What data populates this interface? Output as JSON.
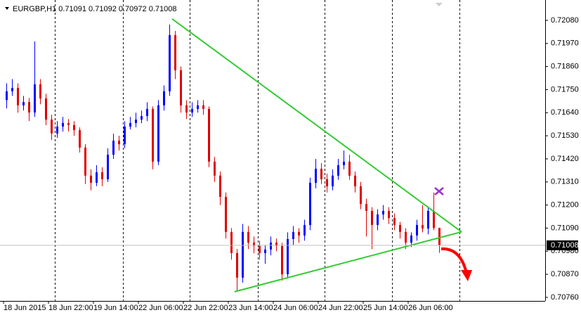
{
  "chart_data": {
    "type": "candlestick",
    "symbol": "EURGBP,H1",
    "up_color": "#0000ff",
    "down_color": "#e00000",
    "categories": [
      "18 Jun 2015",
      null,
      null,
      null,
      null,
      null,
      null,
      null,
      "18 Jun 22:00",
      null,
      null,
      null,
      null,
      null,
      null,
      null,
      "19 Jun 14:00",
      null,
      null,
      null,
      null,
      null,
      null,
      null,
      "22 Jun 06:00",
      null,
      null,
      null,
      null,
      null,
      null,
      null,
      "22 Jun 22:00",
      null,
      null,
      null,
      null,
      null,
      null,
      null,
      "23 Jun 14:00",
      null,
      null,
      null,
      null,
      null,
      null,
      null,
      "24 Jun 06:00",
      null,
      null,
      null,
      null,
      null,
      null,
      null,
      "24 Jun 22:00",
      null,
      null,
      null,
      null,
      null,
      null,
      null,
      "25 Jun 14:00",
      null,
      null,
      null,
      null,
      null,
      null,
      null,
      "26 Jun 06:00",
      null,
      null,
      null,
      null,
      null
    ],
    "ohlc": [
      [
        0.717,
        0.7178,
        0.7166,
        0.71742
      ],
      [
        0.71742,
        0.718,
        0.7172,
        0.71758
      ],
      [
        0.71758,
        0.7178,
        0.7164,
        0.71675
      ],
      [
        0.71675,
        0.7172,
        0.7165,
        0.71691
      ],
      [
        0.71691,
        0.7171,
        0.716,
        0.71641
      ],
      [
        0.71641,
        0.7198,
        0.7162,
        0.71775
      ],
      [
        0.71775,
        0.718,
        0.7168,
        0.71708
      ],
      [
        0.71708,
        0.7173,
        0.7158,
        0.71607
      ],
      [
        0.71607,
        0.7163,
        0.7151,
        0.71541
      ],
      [
        0.71541,
        0.716,
        0.7152,
        0.71574
      ],
      [
        0.71574,
        0.7162,
        0.7155,
        0.71591
      ],
      [
        0.71591,
        0.7161,
        0.7155,
        0.71581
      ],
      [
        0.71581,
        0.716,
        0.7153,
        0.71557
      ],
      [
        0.71557,
        0.7157,
        0.7145,
        0.71474
      ],
      [
        0.71474,
        0.7149,
        0.713,
        0.7134
      ],
      [
        0.7134,
        0.7137,
        0.7127,
        0.71306
      ],
      [
        0.71306,
        0.7139,
        0.7129,
        0.71356
      ],
      [
        0.71356,
        0.7138,
        0.7129,
        0.71323
      ],
      [
        0.71323,
        0.7147,
        0.7131,
        0.7144
      ],
      [
        0.7144,
        0.7154,
        0.7142,
        0.71507
      ],
      [
        0.71507,
        0.7153,
        0.7146,
        0.7149
      ],
      [
        0.7149,
        0.716,
        0.7147,
        0.71574
      ],
      [
        0.71574,
        0.7162,
        0.7156,
        0.71591
      ],
      [
        0.71591,
        0.7164,
        0.7157,
        0.71607
      ],
      [
        0.71607,
        0.7165,
        0.7159,
        0.71624
      ],
      [
        0.71624,
        0.7169,
        0.716,
        0.71658
      ],
      [
        0.71658,
        0.7167,
        0.7137,
        0.71407
      ],
      [
        0.71407,
        0.717,
        0.7139,
        0.71675
      ],
      [
        0.71675,
        0.7177,
        0.7165,
        0.71742
      ],
      [
        0.71742,
        0.7206,
        0.7172,
        0.7201
      ],
      [
        0.7201,
        0.7203,
        0.718,
        0.71842
      ],
      [
        0.71842,
        0.7186,
        0.7164,
        0.71675
      ],
      [
        0.71675,
        0.717,
        0.7161,
        0.71641
      ],
      [
        0.71641,
        0.7169,
        0.7162,
        0.71658
      ],
      [
        0.71658,
        0.717,
        0.7164,
        0.71675
      ],
      [
        0.71675,
        0.717,
        0.7163,
        0.71658
      ],
      [
        0.71658,
        0.7167,
        0.7138,
        0.71407
      ],
      [
        0.71407,
        0.7143,
        0.7131,
        0.7134
      ],
      [
        0.7134,
        0.7136,
        0.712,
        0.71239
      ],
      [
        0.71239,
        0.7126,
        0.7104,
        0.71072
      ],
      [
        0.71072,
        0.7109,
        0.7094,
        0.70971
      ],
      [
        0.70971,
        0.7099,
        0.7079,
        0.70854
      ],
      [
        0.70854,
        0.7111,
        0.7083,
        0.71072
      ],
      [
        0.71072,
        0.711,
        0.7099,
        0.71021
      ],
      [
        0.71021,
        0.7105,
        0.7097,
        0.71005
      ],
      [
        0.71005,
        0.7103,
        0.7094,
        0.70971
      ],
      [
        0.70971,
        0.7101,
        0.7092,
        0.70988
      ],
      [
        0.70988,
        0.7105,
        0.7096,
        0.71021
      ],
      [
        0.71021,
        0.7104,
        0.7098,
        0.71005
      ],
      [
        0.71005,
        0.7102,
        0.7084,
        0.7087
      ],
      [
        0.7087,
        0.7107,
        0.7085,
        0.71038
      ],
      [
        0.71038,
        0.711,
        0.7101,
        0.71072
      ],
      [
        0.71072,
        0.7109,
        0.7102,
        0.71055
      ],
      [
        0.71055,
        0.7113,
        0.7103,
        0.71105
      ],
      [
        0.71105,
        0.7133,
        0.7108,
        0.71306
      ],
      [
        0.71306,
        0.7142,
        0.7128,
        0.71373
      ],
      [
        0.71373,
        0.714,
        0.713,
        0.71323
      ],
      [
        0.71323,
        0.7135,
        0.7126,
        0.71289
      ],
      [
        0.71289,
        0.7137,
        0.7127,
        0.7134
      ],
      [
        0.7134,
        0.7142,
        0.7132,
        0.7139
      ],
      [
        0.7139,
        0.7146,
        0.7137,
        0.71407
      ],
      [
        0.71407,
        0.7144,
        0.7132,
        0.7134
      ],
      [
        0.7134,
        0.7136,
        0.7126,
        0.71289
      ],
      [
        0.71289,
        0.7131,
        0.7118,
        0.71205
      ],
      [
        0.71205,
        0.7123,
        0.7105,
        0.71172
      ],
      [
        0.71172,
        0.7119,
        0.7099,
        0.71105
      ],
      [
        0.71105,
        0.7118,
        0.7108,
        0.71155
      ],
      [
        0.71155,
        0.712,
        0.7113,
        0.71172
      ],
      [
        0.71172,
        0.7119,
        0.7111,
        0.71138
      ],
      [
        0.71138,
        0.7116,
        0.7108,
        0.71105
      ],
      [
        0.71105,
        0.7112,
        0.7104,
        0.71072
      ],
      [
        0.71072,
        0.7109,
        0.7099,
        0.71021
      ],
      [
        0.71021,
        0.7107,
        0.71,
        0.71055
      ],
      [
        0.71055,
        0.7113,
        0.7103,
        0.71105
      ],
      [
        0.71105,
        0.712,
        0.7107,
        0.71088
      ],
      [
        0.71088,
        0.7119,
        0.7106,
        0.71172
      ],
      [
        0.71172,
        0.7126,
        0.7108,
        0.71091
      ],
      [
        0.71091,
        0.71092,
        0.70972,
        0.71008
      ]
    ],
    "ylim": [
      0.70743,
      0.72177
    ],
    "yticks": [
      {
        "value": 0.7208,
        "label": "0.72080"
      },
      {
        "value": 0.7197,
        "label": "0.71970"
      },
      {
        "value": 0.7186,
        "label": "0.71860"
      },
      {
        "value": 0.7175,
        "label": "0.71750"
      },
      {
        "value": 0.7164,
        "label": "0.71640"
      },
      {
        "value": 0.7153,
        "label": "0.71530"
      },
      {
        "value": 0.7142,
        "label": "0.71420"
      },
      {
        "value": 0.7131,
        "label": "0.71310"
      },
      {
        "value": 0.712,
        "label": "0.71200"
      },
      {
        "value": 0.7109,
        "label": "0.71090"
      },
      {
        "value": 0.7098,
        "label": "0.70980"
      },
      {
        "value": 0.7087,
        "label": "0.70870"
      },
      {
        "value": 0.7076,
        "label": "0.70760"
      }
    ],
    "trendlines": [
      {
        "x": [
          29.5,
          81
        ],
        "y": [
          0.72087,
          0.71072
        ],
        "color": "#33cc33"
      },
      {
        "x": [
          40.6,
          81
        ],
        "y": [
          0.70787,
          0.71072
        ],
        "color": "#33cc33"
      }
    ]
  }
}
